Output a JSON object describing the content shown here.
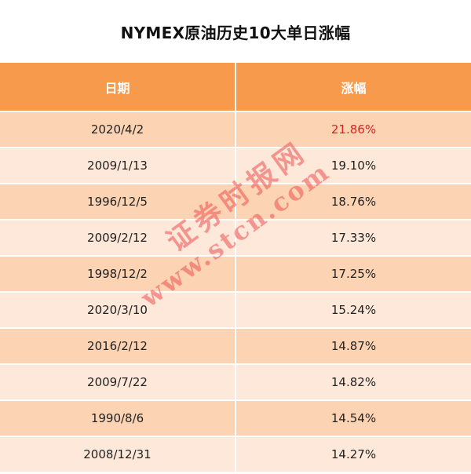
{
  "title": "NYMEX原油历史10大单日涨幅",
  "table": {
    "headers": [
      "日期",
      "涨幅"
    ],
    "rows": [
      {
        "date": "2020/4/2",
        "change": "21.86%",
        "highlight": true
      },
      {
        "date": "2009/1/13",
        "change": "19.10%"
      },
      {
        "date": "1996/12/5",
        "change": "18.76%"
      },
      {
        "date": "2009/2/12",
        "change": "17.33%"
      },
      {
        "date": "1998/12/2",
        "change": "17.25%"
      },
      {
        "date": "2020/3/10",
        "change": "15.24%"
      },
      {
        "date": "2016/2/12",
        "change": "14.87%"
      },
      {
        "date": "2009/7/22",
        "change": "14.82%"
      },
      {
        "date": "1990/8/6",
        "change": "14.54%"
      },
      {
        "date": "2008/12/31",
        "change": "14.27%"
      }
    ]
  },
  "chart_data": {
    "type": "table",
    "title": "NYMEX原油历史10大单日涨幅",
    "columns": [
      "日期",
      "涨幅"
    ],
    "rows": [
      [
        "2020/4/2",
        "21.86%"
      ],
      [
        "2009/1/13",
        "19.10%"
      ],
      [
        "1996/12/5",
        "18.76%"
      ],
      [
        "2009/2/12",
        "17.33%"
      ],
      [
        "1998/12/2",
        "17.25%"
      ],
      [
        "2020/3/10",
        "15.24%"
      ],
      [
        "2016/2/12",
        "14.87%"
      ],
      [
        "2009/7/22",
        "14.82%"
      ],
      [
        "1990/8/6",
        "14.54%"
      ],
      [
        "2008/12/31",
        "14.27%"
      ]
    ]
  },
  "watermark": {
    "line1": "证券时报网",
    "line2": "www.stcn.com"
  },
  "colors": {
    "header_bg": "#F79A4B",
    "row_odd_bg": "#FCD4B4",
    "row_even_bg": "#FDE8D9",
    "highlight_text": "#E02020"
  }
}
